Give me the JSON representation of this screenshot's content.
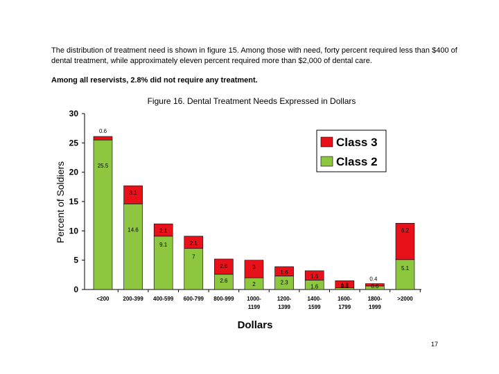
{
  "intro_text": "The distribution of treatment need is shown in figure 15. Among those with need, forty percent required less than $400 of dental treatment, while approximately eleven percent required more than $2,000 of dental care.",
  "note_text": "Among all reservists, 2.8% did not require any treatment.",
  "page_number": "17",
  "colors": {
    "class3": "#e8111a",
    "class2": "#8dc63f"
  },
  "chart_data": {
    "type": "bar",
    "stacked": true,
    "title": "Figure 16.  Dental Treatment Needs Expressed in Dollars",
    "xlabel": "Dollars",
    "ylabel": "Percent of Soldiers",
    "ylim": [
      0,
      30
    ],
    "yticks": [
      "0",
      "5",
      "10",
      "15",
      "20",
      "25",
      "30"
    ],
    "categories": [
      [
        "<200"
      ],
      [
        "200-399"
      ],
      [
        "400-599"
      ],
      [
        "600-799"
      ],
      [
        "800-999"
      ],
      [
        "1000-",
        "1199"
      ],
      [
        "1200-",
        "1399"
      ],
      [
        "1400-",
        "1599"
      ],
      [
        "1600-",
        "1799"
      ],
      [
        "1800-",
        "1999"
      ],
      [
        ">2000"
      ]
    ],
    "series": [
      {
        "name": "Class 2",
        "values": [
          25.5,
          14.6,
          9.1,
          7,
          2.6,
          2,
          2.3,
          1.6,
          0.3,
          0.6,
          5.1
        ],
        "labels": [
          "25.5",
          "14.6",
          "9.1",
          "7",
          "2.6",
          "2",
          "2.3",
          "1.6",
          "0.3",
          "0.6",
          "5.1"
        ]
      },
      {
        "name": "Class 3",
        "values": [
          0.6,
          3.1,
          2.1,
          2.1,
          2.6,
          3,
          1.6,
          1.6,
          1.2,
          0.4,
          6.2
        ],
        "labels": [
          "0.6",
          "3.1",
          "2.1",
          "2.1",
          "2.6",
          "3",
          "1.6",
          "1.6",
          "1.2",
          "0.4",
          "6.2"
        ]
      }
    ],
    "legend": {
      "position": "top-right",
      "entries": [
        "Class 3",
        "Class 2"
      ]
    }
  }
}
